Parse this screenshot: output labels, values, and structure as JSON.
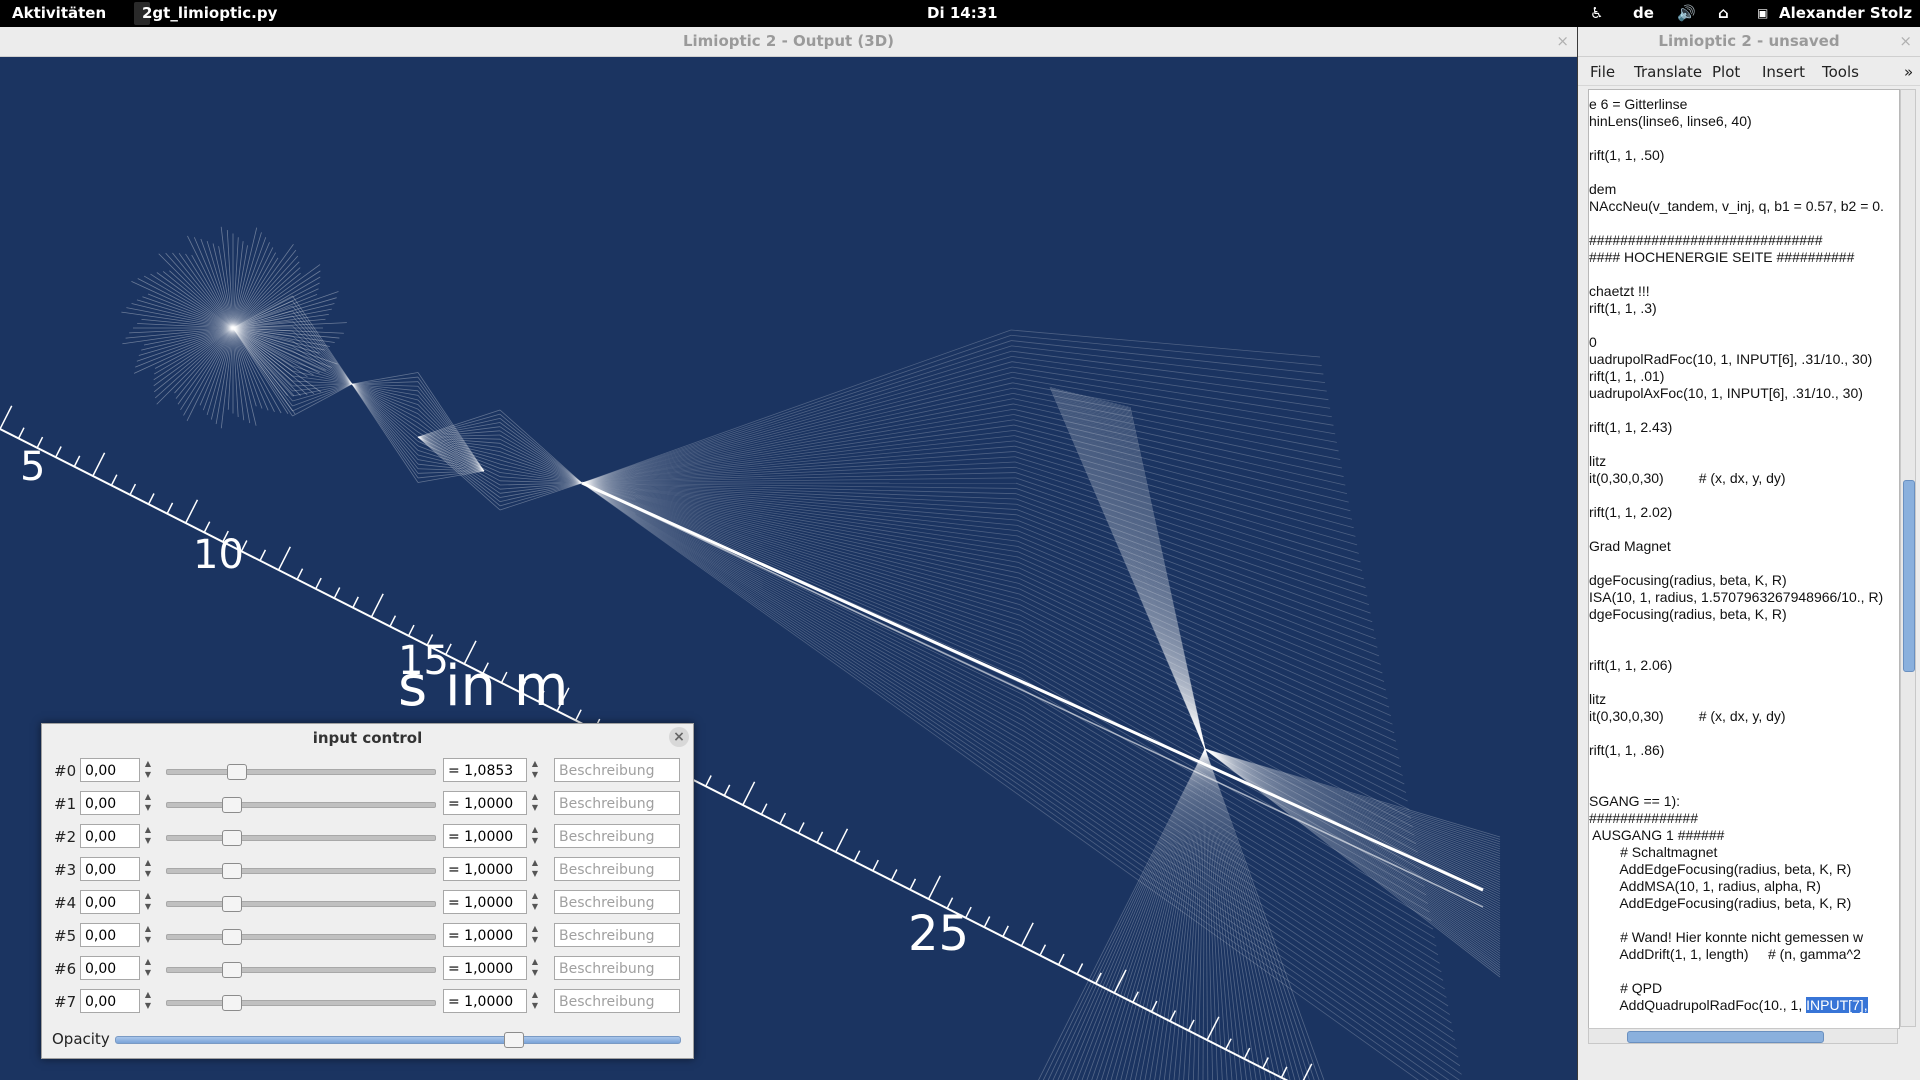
{
  "topbar": {
    "activities": "Aktivitäten",
    "task": "2gt_limioptic.py",
    "clock": "Di 14:31",
    "lang": "de",
    "user": "Alexander Stolz"
  },
  "output_window": {
    "title": "Limioptic 2 - Output (3D)",
    "axis_labels": [
      "5",
      "10",
      "15",
      "25"
    ],
    "axis_title": "s in m"
  },
  "editor": {
    "title": "Limioptic 2 - unsaved",
    "menu": [
      "File",
      "Translate",
      "Plot",
      "Insert",
      "Tools"
    ],
    "more": "»",
    "code_lines": [
      "e 6 = Gitterlinse",
      "hinLens(linse6, linse6, 40)",
      "",
      "rift(1, 1, .50)",
      "",
      "dem",
      "NAccNeu(v_tandem, v_inj, q, b1 = 0.57, b2 = 0.",
      "",
      "##############################",
      "#### HOCHENERGIE SEITE ##########",
      "",
      "chaetzt !!!",
      "rift(1, 1, .3)",
      "",
      "0",
      "uadrupolRadFoc(10, 1, INPUT[6], .31/10., 30)",
      "rift(1, 1, .01)",
      "uadrupolAxFoc(10, 1, INPUT[6], .31/10., 30)",
      "",
      "rift(1, 1, 2.43)",
      "",
      "litz",
      "it(0,30,0,30)         # (x, dx, y, dy)",
      "",
      "rift(1, 1, 2.02)",
      "",
      "Grad Magnet",
      "",
      "dgeFocusing(radius, beta, K, R)",
      "ISA(10, 1, radius, 1.5707963267948966/10., R)",
      "dgeFocusing(radius, beta, K, R)",
      "",
      "",
      "rift(1, 1, 2.06)",
      "",
      "litz",
      "it(0,30,0,30)         # (x, dx, y, dy)",
      "",
      "rift(1, 1, .86)",
      "",
      "",
      "SGANG == 1):",
      "##############",
      " AUSGANG 1 ######",
      "        # Schaltmagnet",
      "        AddEdgeFocusing(radius, beta, K, R)",
      "        AddMSA(10, 1, radius, alpha, R)",
      "        AddEdgeFocusing(radius, beta, K, R)",
      "",
      "        # Wand! Hier konnte nicht gemessen w",
      "        AddDrift(1, 1, length)     # (n, gamma^2",
      "",
      "        # QPD"
    ],
    "last_line_prefix": "        AddQuadrupolRadFoc(10., 1, ",
    "last_line_selected": "INPUT[7],"
  },
  "dialog": {
    "title": "input control",
    "close": "×",
    "rows": [
      {
        "label": "#0",
        "value": "0,00",
        "factor": "= 1,0853",
        "desc_placeholder": "Beschreibung",
        "slider": 0.24
      },
      {
        "label": "#1",
        "value": "0,00",
        "factor": "= 1,0000",
        "desc_placeholder": "Beschreibung",
        "slider": 0.22
      },
      {
        "label": "#2",
        "value": "0,00",
        "factor": "= 1,0000",
        "desc_placeholder": "Beschreibung",
        "slider": 0.22
      },
      {
        "label": "#3",
        "value": "0,00",
        "factor": "= 1,0000",
        "desc_placeholder": "Beschreibung",
        "slider": 0.22
      },
      {
        "label": "#4",
        "value": "0,00",
        "factor": "= 1,0000",
        "desc_placeholder": "Beschreibung",
        "slider": 0.22
      },
      {
        "label": "#5",
        "value": "0,00",
        "factor": "= 1,0000",
        "desc_placeholder": "Beschreibung",
        "slider": 0.22
      },
      {
        "label": "#6",
        "value": "0,00",
        "factor": "= 1,0000",
        "desc_placeholder": "Beschreibung",
        "slider": 0.22
      },
      {
        "label": "#7",
        "value": "0,00",
        "factor": "= 1,0000",
        "desc_placeholder": "Beschreibung",
        "slider": 0.22
      }
    ],
    "opacity_label": "Opacity",
    "opacity": 0.7
  },
  "colors": {
    "plot_bg": "#1b3461",
    "beam": "#ffffff"
  }
}
